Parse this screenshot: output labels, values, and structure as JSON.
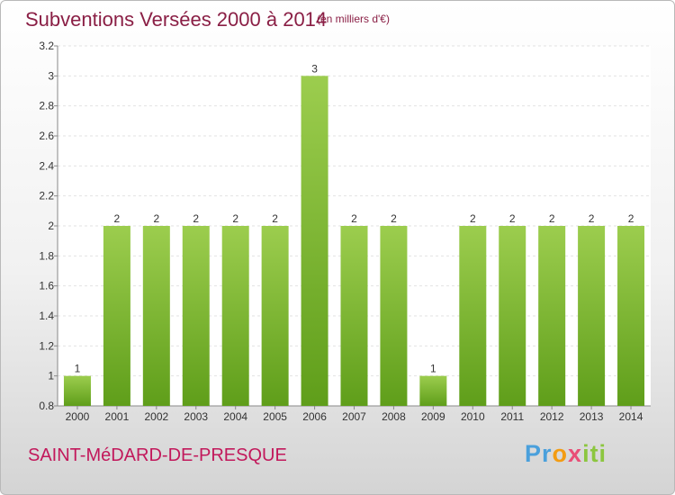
{
  "header": {
    "title": "Subventions Versées 2000 à 2014",
    "subtitle": "(en milliers d'€)"
  },
  "footer": {
    "commune": "SAINT-MéDARD-DE-PRESQUE",
    "logo_parts": [
      "Pr",
      "o",
      "x",
      "iti"
    ]
  },
  "colors": {
    "bar_top": "#9ccd4e",
    "bar_bottom": "#5f9e1a",
    "title": "#8a1f45",
    "commune": "#c2185b"
  },
  "chart_data": {
    "type": "bar",
    "title": "Subventions Versées 2000 à 2014",
    "subtitle": "(en milliers d'€)",
    "categories": [
      "2000",
      "2001",
      "2002",
      "2003",
      "2004",
      "2005",
      "2006",
      "2007",
      "2008",
      "2009",
      "2010",
      "2011",
      "2012",
      "2013",
      "2014"
    ],
    "values": [
      1,
      2,
      2,
      2,
      2,
      2,
      3,
      2,
      2,
      1,
      2,
      2,
      2,
      2,
      2
    ],
    "data_labels": [
      "1",
      "2",
      "2",
      "2",
      "2",
      "2",
      "3",
      "2",
      "2",
      "1",
      "2",
      "2",
      "2",
      "2",
      "2"
    ],
    "ylim": [
      0.8,
      3.2
    ],
    "yticks": [
      "0.8",
      "1",
      "1.2",
      "1.4",
      "1.6",
      "1.8",
      "2",
      "2.2",
      "2.4",
      "2.6",
      "2.8",
      "3",
      "3.2"
    ],
    "grid": true,
    "legend": "none"
  }
}
